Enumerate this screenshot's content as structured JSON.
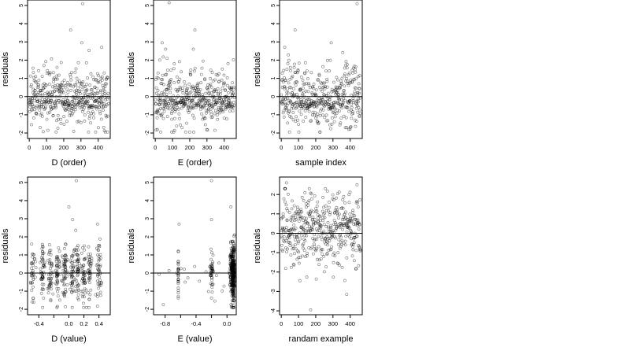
{
  "figure": {
    "background": "#ffffff",
    "point_color": "#000000"
  },
  "chart_data": [
    {
      "type": "scatter",
      "xlabel": "D (order)",
      "ylabel": "residuals",
      "xlim": [
        -10,
        470
      ],
      "ylim": [
        -2.3,
        5.3
      ],
      "xticks": [
        0,
        100,
        200,
        300,
        400
      ],
      "yticks": [
        -2,
        -1,
        0,
        1,
        2,
        3,
        4,
        5
      ],
      "hline": 0,
      "n_points": 460,
      "seed": 11,
      "generator": "order",
      "outliers": [
        [
          240,
          3.65
        ],
        [
          305,
          2.95
        ],
        [
          310,
          5.1
        ],
        [
          420,
          2.7
        ]
      ]
    },
    {
      "type": "scatter",
      "xlabel": "E (order)",
      "ylabel": "residuals",
      "xlim": [
        -10,
        470
      ],
      "ylim": [
        -2.3,
        5.3
      ],
      "xticks": [
        0,
        100,
        200,
        300,
        400
      ],
      "yticks": [
        -2,
        -1,
        0,
        1,
        2,
        3,
        4,
        5
      ],
      "hline": 0,
      "n_points": 460,
      "seed": 23,
      "generator": "order",
      "outliers": [
        [
          80,
          5.15
        ],
        [
          230,
          3.65
        ],
        [
          40,
          2.95
        ],
        [
          60,
          2.6
        ]
      ]
    },
    {
      "type": "scatter",
      "xlabel": "sample index",
      "ylabel": "residuals",
      "xlim": [
        -10,
        470
      ],
      "ylim": [
        -2.3,
        5.3
      ],
      "xticks": [
        0,
        100,
        200,
        300,
        400
      ],
      "yticks": [
        -2,
        -1,
        0,
        1,
        2,
        3,
        4,
        5
      ],
      "hline": 0,
      "n_points": 460,
      "seed": 37,
      "generator": "order",
      "outliers": [
        [
          440,
          5.1
        ],
        [
          80,
          3.65
        ],
        [
          290,
          2.95
        ],
        [
          20,
          2.7
        ]
      ]
    },
    {
      "type": "scatter",
      "xlabel": "D (value)",
      "ylabel": "residuals",
      "xlim": [
        -0.55,
        0.55
      ],
      "ylim": [
        -2.3,
        5.3
      ],
      "xticks": [
        -0.4,
        -0.2,
        0.0,
        0.2,
        0.4
      ],
      "xticklabels": [
        "-0.4",
        "",
        "0.0",
        "0.2",
        "0.4"
      ],
      "yticks": [
        -2,
        -1,
        0,
        1,
        2,
        3,
        4,
        5
      ],
      "hline": 0,
      "n_points": 460,
      "seed": 51,
      "generator": "dvalue",
      "clusters": [
        -0.48,
        -0.35,
        -0.25,
        -0.15,
        -0.05,
        0.05,
        0.12,
        0.2,
        0.28,
        0.4
      ],
      "outliers": [
        [
          0.1,
          5.1
        ],
        [
          0.0,
          3.65
        ],
        [
          0.05,
          2.95
        ],
        [
          0.38,
          2.7
        ]
      ]
    },
    {
      "type": "scatter",
      "xlabel": "E (value)",
      "ylabel": "residuals",
      "xlim": [
        -0.95,
        0.12
      ],
      "ylim": [
        -2.3,
        5.3
      ],
      "xticks": [
        -0.8,
        -0.6,
        -0.4,
        -0.2,
        0.0
      ],
      "xticklabels": [
        "-0.8",
        "",
        "-0.4",
        "",
        "0.0"
      ],
      "yticks": [
        -2,
        -1,
        0,
        1,
        2,
        3,
        4,
        5
      ],
      "hline": 0,
      "n_points": 460,
      "seed": 67,
      "generator": "evalue",
      "outliers": [
        [
          -0.2,
          5.1
        ],
        [
          0.05,
          3.65
        ],
        [
          -0.62,
          2.7
        ],
        [
          -0.2,
          2.95
        ]
      ]
    },
    {
      "type": "scatter",
      "xlabel": "randam example",
      "ylabel": "residuals",
      "xlim": [
        -10,
        470
      ],
      "ylim": [
        -4.2,
        2.9
      ],
      "xticks": [
        0,
        100,
        200,
        300,
        400
      ],
      "yticks": [
        -4,
        -3,
        -2,
        -1,
        0,
        1,
        2
      ],
      "hline": 0,
      "n_points": 460,
      "seed": 83,
      "generator": "random",
      "outliers": [
        [
          170,
          -3.95
        ],
        [
          380,
          -3.15
        ],
        [
          30,
          2.6
        ],
        [
          440,
          2.5
        ]
      ]
    }
  ]
}
